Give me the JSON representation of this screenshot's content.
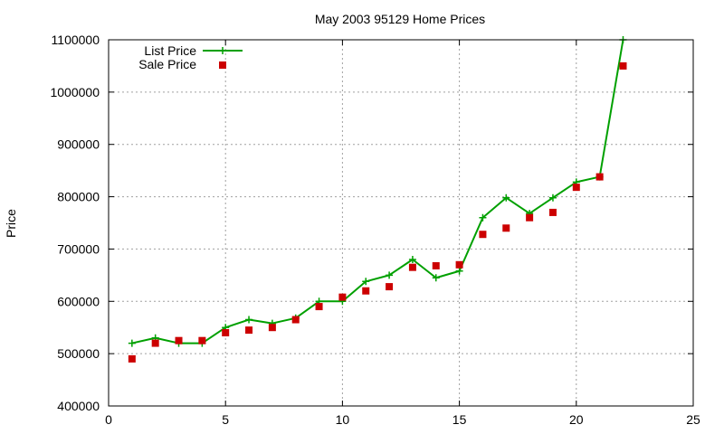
{
  "chart_data": {
    "type": "line",
    "title": "May 2003 95129 Home Prices",
    "xlabel": "",
    "ylabel": "Price",
    "xlim": [
      0,
      25
    ],
    "ylim": [
      400000,
      1100000
    ],
    "xticks": [
      0,
      5,
      10,
      15,
      20,
      25
    ],
    "yticks": [
      400000,
      500000,
      600000,
      700000,
      800000,
      900000,
      1000000,
      1100000
    ],
    "grid": true,
    "legend_position": "top-left",
    "series": [
      {
        "name": "List Price",
        "style": "lines+points",
        "marker": "plus",
        "color": "#00a000",
        "x": [
          1,
          2,
          3,
          4,
          5,
          6,
          7,
          8,
          9,
          10,
          11,
          12,
          13,
          14,
          15,
          16,
          17,
          18,
          19,
          20,
          21,
          22
        ],
        "y": [
          520000,
          530000,
          520000,
          520000,
          550000,
          565000,
          558000,
          568000,
          600000,
          600000,
          638000,
          650000,
          680000,
          645000,
          658000,
          760000,
          798000,
          768000,
          798000,
          828000,
          838000,
          1100000
        ]
      },
      {
        "name": "Sale Price",
        "style": "points",
        "marker": "square",
        "color": "#cc0000",
        "x": [
          1,
          2,
          3,
          4,
          5,
          6,
          7,
          8,
          9,
          10,
          11,
          12,
          13,
          14,
          15,
          16,
          17,
          18,
          19,
          20,
          21,
          22
        ],
        "y": [
          490000,
          520000,
          525000,
          525000,
          540000,
          545000,
          550000,
          565000,
          590000,
          608000,
          620000,
          628000,
          665000,
          668000,
          670000,
          728000,
          740000,
          760000,
          770000,
          818000,
          838000,
          1050000
        ]
      }
    ]
  }
}
